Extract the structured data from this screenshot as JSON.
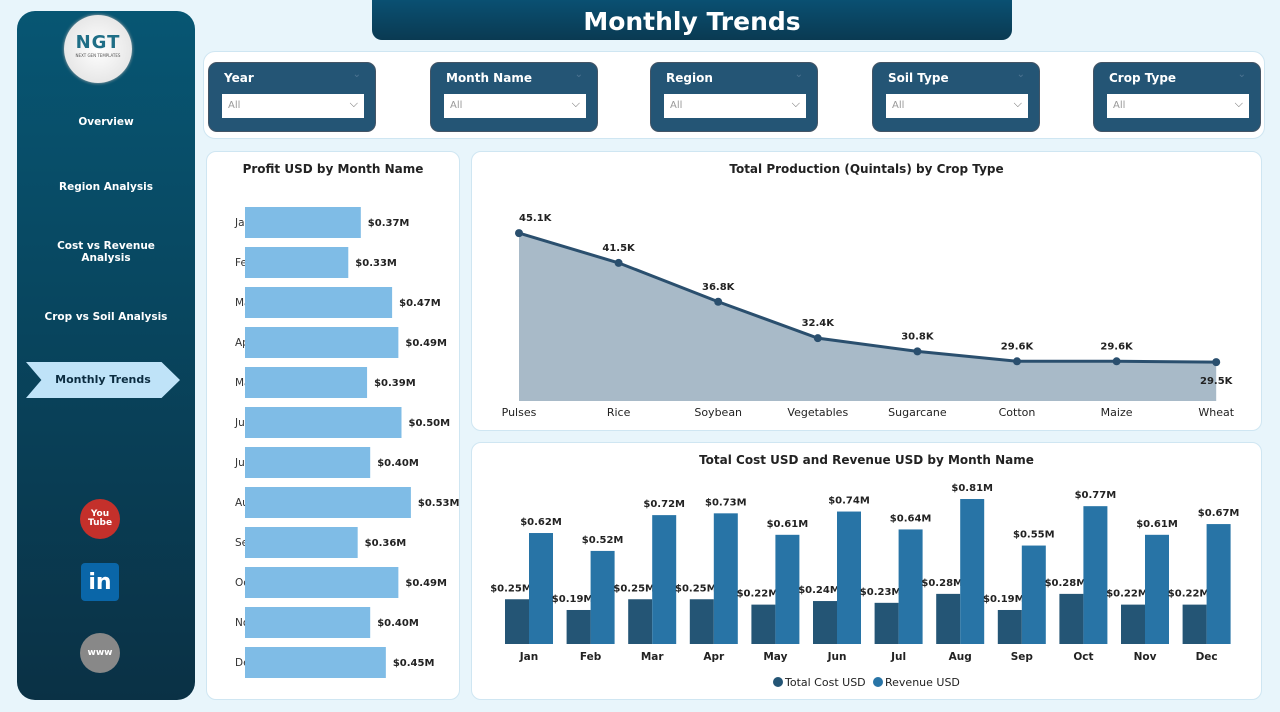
{
  "title": "Monthly Trends",
  "logo": {
    "text": "NGT",
    "tagline": "NEXT GEN TEMPLATES"
  },
  "nav": [
    {
      "label": "Overview"
    },
    {
      "label": "Region Analysis"
    },
    {
      "label": "Cost vs Revenue Analysis"
    },
    {
      "label": "Crop vs Soil Analysis"
    },
    {
      "label": "Monthly Trends",
      "active": true
    }
  ],
  "social": [
    {
      "icon": "youtube-icon",
      "label": "You Tube",
      "color": "#c4302b"
    },
    {
      "icon": "linkedin-icon",
      "label": "in",
      "color": "#0a66a8"
    },
    {
      "icon": "globe-icon",
      "label": "www",
      "color": "#888888"
    }
  ],
  "filters": [
    {
      "label": "Year",
      "value": "All"
    },
    {
      "label": "Month Name",
      "value": "All"
    },
    {
      "label": "Region",
      "value": "All"
    },
    {
      "label": "Soil Type",
      "value": "All"
    },
    {
      "label": "Crop Type",
      "value": "All"
    }
  ],
  "chart_data": [
    {
      "type": "bar",
      "orientation": "horizontal",
      "title": "Profit USD by Month Name",
      "categories": [
        "Jan",
        "Feb",
        "Mar",
        "Apr",
        "May",
        "Jun",
        "Jul",
        "Aug",
        "Sep",
        "Oct",
        "Nov",
        "Dec"
      ],
      "values": [
        0.37,
        0.33,
        0.47,
        0.49,
        0.39,
        0.5,
        0.4,
        0.53,
        0.36,
        0.49,
        0.4,
        0.45
      ],
      "labels": [
        "$0.37M",
        "$0.33M",
        "$0.47M",
        "$0.49M",
        "$0.39M",
        "$0.50M",
        "$0.40M",
        "$0.53M",
        "$0.36M",
        "$0.49M",
        "$0.40M",
        "$0.45M"
      ],
      "color": "#7fbce6"
    },
    {
      "type": "area",
      "title": "Total Production (Quintals) by Crop Type",
      "categories": [
        "Pulses",
        "Rice",
        "Soybean",
        "Vegetables",
        "Sugarcane",
        "Cotton",
        "Maize",
        "Wheat"
      ],
      "values": [
        45.1,
        41.5,
        36.8,
        32.4,
        30.8,
        29.6,
        29.6,
        29.5
      ],
      "labels": [
        "45.1K",
        "41.5K",
        "36.8K",
        "32.4K",
        "30.8K",
        "29.6K",
        "29.6K",
        "29.5K"
      ],
      "color": "#a8bac8",
      "line_color": "#2a4f6e"
    },
    {
      "type": "bar",
      "title": "Total Cost USD and Revenue USD by Month Name",
      "categories": [
        "Jan",
        "Feb",
        "Mar",
        "Apr",
        "May",
        "Jun",
        "Jul",
        "Aug",
        "Sep",
        "Oct",
        "Nov",
        "Dec"
      ],
      "series": [
        {
          "name": "Total Cost USD",
          "color": "#245575",
          "values": [
            0.25,
            0.19,
            0.25,
            0.25,
            0.22,
            0.24,
            0.23,
            0.28,
            0.19,
            0.28,
            0.22,
            0.22
          ]
        },
        {
          "name": "Revenue USD",
          "color": "#2874a6",
          "values": [
            0.62,
            0.52,
            0.72,
            0.73,
            0.61,
            0.74,
            0.64,
            0.81,
            0.55,
            0.77,
            0.61,
            0.67
          ]
        }
      ],
      "legend": "bottom"
    }
  ]
}
